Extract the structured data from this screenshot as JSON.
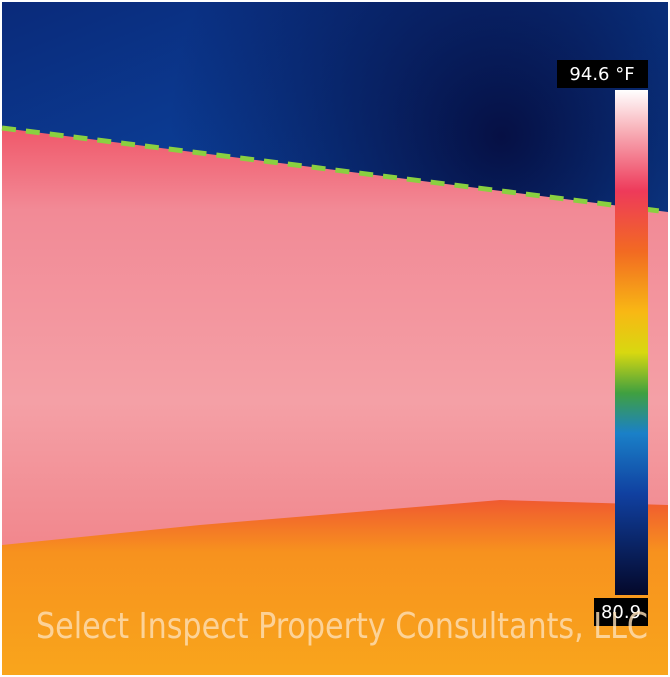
{
  "scale": {
    "max_label": "94.6 °F",
    "min_label": "80.9"
  },
  "watermark": "Select Inspect Property Consultants, LLC"
}
